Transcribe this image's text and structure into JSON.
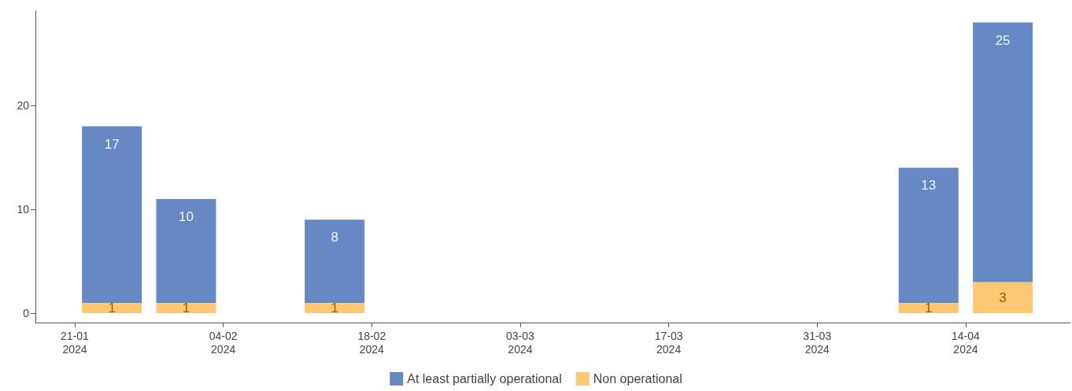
{
  "chart_data": {
    "type": "bar",
    "stacked": true,
    "x": [
      "2024-01-24T12:00",
      "2024-01-31T12:00",
      "2024-02-14T12:00",
      "2024-04-10T12:00",
      "2024-04-17T12:00"
    ],
    "series": [
      {
        "name": "Non operational",
        "color": "#fdc875",
        "values": [
          1,
          1,
          1,
          1,
          3
        ]
      },
      {
        "name": "At least partially operational",
        "color": "#6688c5",
        "values": [
          17,
          10,
          8,
          13,
          25
        ]
      }
    ],
    "xlim": [
      "2024-01-17T07:00",
      "2024-04-23T21:00"
    ],
    "xticks": [
      {
        "value": "2024-01-21",
        "label": "21-01\n2024"
      },
      {
        "value": "2024-02-04",
        "label": "04-02\n2024"
      },
      {
        "value": "2024-02-18",
        "label": "18-02\n2024"
      },
      {
        "value": "2024-03-03",
        "label": "03-03\n2024"
      },
      {
        "value": "2024-03-17",
        "label": "17-03\n2024"
      },
      {
        "value": "2024-03-31",
        "label": "31-03\n2024"
      },
      {
        "value": "2024-04-14",
        "label": "14-04\n2024"
      }
    ],
    "ylim": [
      -0.9,
      29.1
    ],
    "yticks": [
      0,
      10,
      20
    ],
    "grid": false,
    "legend": "bottom",
    "data_labels": true
  }
}
